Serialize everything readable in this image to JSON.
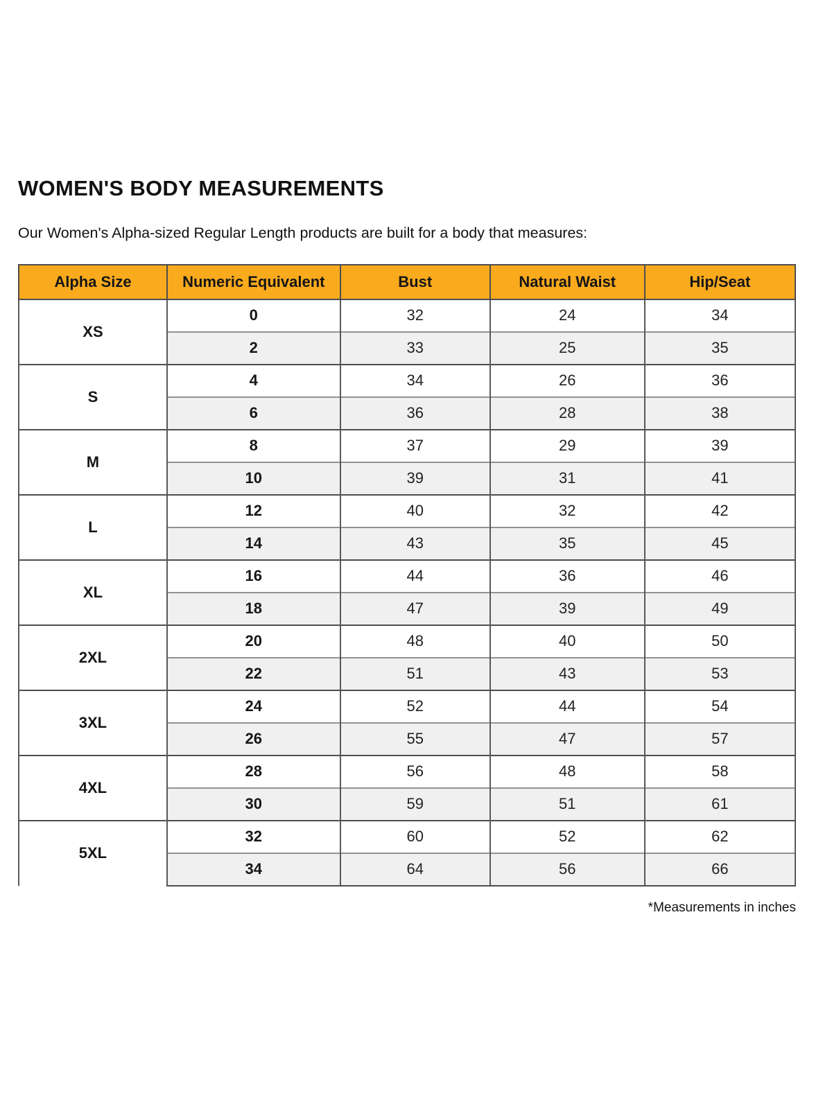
{
  "page": {
    "title": "WOMEN'S BODY MEASUREMENTS",
    "subtitle": "Our Women's Alpha-sized Regular Length products are built for a body that measures:",
    "footnote": "*Measurements in inches"
  },
  "colors": {
    "header_bg": "#FAAA1D",
    "row_alt_bg": "#F0F0F0",
    "border_dark": "#4D4D4F",
    "border_light": "#909295",
    "text": "#161616"
  },
  "chart_data": {
    "type": "table",
    "title": "WOMEN'S BODY MEASUREMENTS",
    "headers": [
      "Alpha Size",
      "Numeric Equivalent",
      "Bust",
      "Natural Waist",
      "Hip/Seat"
    ],
    "units": "inches",
    "groups": [
      {
        "alpha": "XS",
        "rows": [
          [
            "0",
            "32",
            "24",
            "34"
          ],
          [
            "2",
            "33",
            "25",
            "35"
          ]
        ]
      },
      {
        "alpha": "S",
        "rows": [
          [
            "4",
            "34",
            "26",
            "36"
          ],
          [
            "6",
            "36",
            "28",
            "38"
          ]
        ]
      },
      {
        "alpha": "M",
        "rows": [
          [
            "8",
            "37",
            "29",
            "39"
          ],
          [
            "10",
            "39",
            "31",
            "41"
          ]
        ]
      },
      {
        "alpha": "L",
        "rows": [
          [
            "12",
            "40",
            "32",
            "42"
          ],
          [
            "14",
            "43",
            "35",
            "45"
          ]
        ]
      },
      {
        "alpha": "XL",
        "rows": [
          [
            "16",
            "44",
            "36",
            "46"
          ],
          [
            "18",
            "47",
            "39",
            "49"
          ]
        ]
      },
      {
        "alpha": "2XL",
        "rows": [
          [
            "20",
            "48",
            "40",
            "50"
          ],
          [
            "22",
            "51",
            "43",
            "53"
          ]
        ]
      },
      {
        "alpha": "3XL",
        "rows": [
          [
            "24",
            "52",
            "44",
            "54"
          ],
          [
            "26",
            "55",
            "47",
            "57"
          ]
        ]
      },
      {
        "alpha": "4XL",
        "rows": [
          [
            "28",
            "56",
            "48",
            "58"
          ],
          [
            "30",
            "59",
            "51",
            "61"
          ]
        ]
      },
      {
        "alpha": "5XL",
        "rows": [
          [
            "32",
            "60",
            "52",
            "62"
          ],
          [
            "34",
            "64",
            "56",
            "66"
          ]
        ]
      }
    ]
  }
}
